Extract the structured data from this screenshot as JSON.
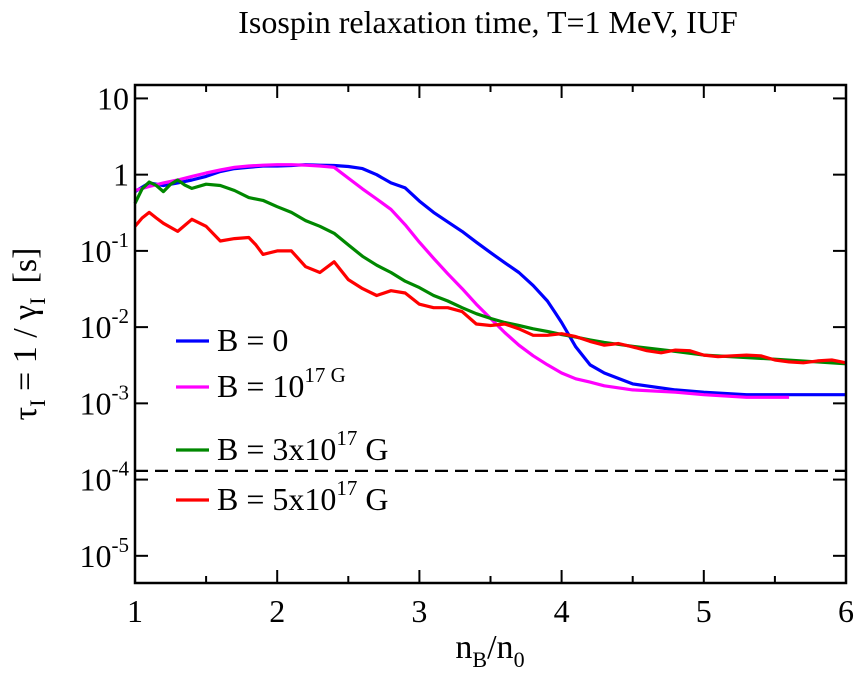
{
  "chart_data": {
    "type": "line",
    "title": "Isospin relaxation time, T=1 MeV, IUF",
    "xlabel": {
      "main": "n",
      "sub1": "B",
      "slash": "/n",
      "sub2": "0"
    },
    "ylabel": {
      "tau": "τ",
      "tau_sub": "I",
      "middle": " = 1 / ",
      "gamma": "γ",
      "gamma_sub": "I",
      "unit": "[s]"
    },
    "x_ticks": [
      {
        "value": 1,
        "label": "1"
      },
      {
        "value": 2,
        "label": "2"
      },
      {
        "value": 3,
        "label": "3"
      },
      {
        "value": 4,
        "label": "4"
      },
      {
        "value": 5,
        "label": "5"
      },
      {
        "value": 6,
        "label": "6"
      }
    ],
    "y_ticks": [
      {
        "value": 10,
        "base": "10",
        "exp": ""
      },
      {
        "value": 1,
        "base": "1",
        "exp": ""
      },
      {
        "value": 0.1,
        "base": "10",
        "exp": "-1"
      },
      {
        "value": 0.01,
        "base": "10",
        "exp": "-2"
      },
      {
        "value": 0.001,
        "base": "10",
        "exp": "-3"
      },
      {
        "value": 0.0001,
        "base": "10",
        "exp": "-4"
      },
      {
        "value": 1e-05,
        "base": "10",
        "exp": "-5"
      }
    ],
    "xlim": [
      1,
      6
    ],
    "ylim": [
      4.4e-06,
      15
    ],
    "yscale": "log",
    "reference_line": {
      "value": 0.00013,
      "style": "dashed",
      "color": "#000000"
    },
    "legend_position": "lower-left",
    "series": [
      {
        "name": "B = 0",
        "legend": {
          "prefix": "B = ",
          "base": "0",
          "exp": "",
          "suffix": ""
        },
        "color": "#0000ff",
        "points": [
          [
            1.0,
            0.6
          ],
          [
            1.1,
            0.78
          ],
          [
            1.2,
            0.72
          ],
          [
            1.3,
            0.78
          ],
          [
            1.4,
            0.85
          ],
          [
            1.5,
            0.95
          ],
          [
            1.6,
            1.1
          ],
          [
            1.7,
            1.2
          ],
          [
            1.8,
            1.25
          ],
          [
            1.9,
            1.3
          ],
          [
            2.0,
            1.3
          ],
          [
            2.1,
            1.32
          ],
          [
            2.2,
            1.35
          ],
          [
            2.3,
            1.33
          ],
          [
            2.4,
            1.32
          ],
          [
            2.5,
            1.28
          ],
          [
            2.6,
            1.2
          ],
          [
            2.7,
            1.0
          ],
          [
            2.8,
            0.78
          ],
          [
            2.9,
            0.67
          ],
          [
            3.0,
            0.45
          ],
          [
            3.1,
            0.32
          ],
          [
            3.2,
            0.24
          ],
          [
            3.3,
            0.18
          ],
          [
            3.4,
            0.13
          ],
          [
            3.5,
            0.095
          ],
          [
            3.6,
            0.07
          ],
          [
            3.7,
            0.052
          ],
          [
            3.8,
            0.035
          ],
          [
            3.9,
            0.022
          ],
          [
            3.95,
            0.016
          ],
          [
            4.0,
            0.0115
          ],
          [
            4.1,
            0.0055
          ],
          [
            4.2,
            0.0032
          ],
          [
            4.3,
            0.0025
          ],
          [
            4.5,
            0.0018
          ],
          [
            4.8,
            0.0015
          ],
          [
            5.0,
            0.0014
          ],
          [
            5.3,
            0.0013
          ],
          [
            5.6,
            0.0013
          ],
          [
            6.0,
            0.0013
          ]
        ]
      },
      {
        "name": "B = 10^17 G",
        "legend": {
          "prefix": "B = ",
          "base": "10",
          "exp": "17 G",
          "suffix": ""
        },
        "color": "#ff00ff",
        "points": [
          [
            1.0,
            0.62
          ],
          [
            1.1,
            0.7
          ],
          [
            1.2,
            0.78
          ],
          [
            1.3,
            0.85
          ],
          [
            1.4,
            0.95
          ],
          [
            1.5,
            1.05
          ],
          [
            1.6,
            1.15
          ],
          [
            1.7,
            1.25
          ],
          [
            1.8,
            1.3
          ],
          [
            1.9,
            1.33
          ],
          [
            2.0,
            1.35
          ],
          [
            2.1,
            1.35
          ],
          [
            2.2,
            1.33
          ],
          [
            2.3,
            1.3
          ],
          [
            2.4,
            1.25
          ],
          [
            2.5,
            0.9
          ],
          [
            2.6,
            0.65
          ],
          [
            2.7,
            0.48
          ],
          [
            2.8,
            0.35
          ],
          [
            2.9,
            0.22
          ],
          [
            3.0,
            0.13
          ],
          [
            3.1,
            0.08
          ],
          [
            3.2,
            0.05
          ],
          [
            3.3,
            0.032
          ],
          [
            3.4,
            0.02
          ],
          [
            3.5,
            0.013
          ],
          [
            3.6,
            0.0085
          ],
          [
            3.7,
            0.0058
          ],
          [
            3.8,
            0.0042
          ],
          [
            3.9,
            0.0032
          ],
          [
            4.0,
            0.0025
          ],
          [
            4.1,
            0.0021
          ],
          [
            4.2,
            0.0019
          ],
          [
            4.3,
            0.0017
          ],
          [
            4.5,
            0.0015
          ],
          [
            4.8,
            0.0014
          ],
          [
            5.0,
            0.0013
          ],
          [
            5.3,
            0.0012
          ],
          [
            5.6,
            0.0012
          ]
        ]
      },
      {
        "name": "B = 3x10^17 G",
        "legend": {
          "prefix": "B = 3x",
          "base": "10",
          "exp": "17",
          "suffix": " G"
        },
        "color": "#008800",
        "points": [
          [
            1.0,
            0.42
          ],
          [
            1.05,
            0.65
          ],
          [
            1.1,
            0.8
          ],
          [
            1.15,
            0.72
          ],
          [
            1.2,
            0.6
          ],
          [
            1.25,
            0.75
          ],
          [
            1.3,
            0.85
          ],
          [
            1.35,
            0.73
          ],
          [
            1.4,
            0.66
          ],
          [
            1.5,
            0.75
          ],
          [
            1.6,
            0.72
          ],
          [
            1.7,
            0.62
          ],
          [
            1.8,
            0.5
          ],
          [
            1.9,
            0.46
          ],
          [
            2.0,
            0.38
          ],
          [
            2.1,
            0.32
          ],
          [
            2.2,
            0.25
          ],
          [
            2.3,
            0.21
          ],
          [
            2.4,
            0.17
          ],
          [
            2.5,
            0.12
          ],
          [
            2.6,
            0.085
          ],
          [
            2.7,
            0.065
          ],
          [
            2.8,
            0.052
          ],
          [
            2.9,
            0.04
          ],
          [
            3.0,
            0.033
          ],
          [
            3.1,
            0.026
          ],
          [
            3.2,
            0.022
          ],
          [
            3.3,
            0.018
          ],
          [
            3.4,
            0.015
          ],
          [
            3.5,
            0.013
          ],
          [
            3.6,
            0.0115
          ],
          [
            3.7,
            0.0105
          ],
          [
            3.8,
            0.0095
          ],
          [
            3.9,
            0.0088
          ],
          [
            4.0,
            0.008
          ],
          [
            4.1,
            0.0074
          ],
          [
            4.2,
            0.0068
          ],
          [
            4.3,
            0.0063
          ],
          [
            4.5,
            0.0056
          ],
          [
            4.8,
            0.0048
          ],
          [
            5.0,
            0.0043
          ],
          [
            5.5,
            0.0038
          ],
          [
            6.0,
            0.0033
          ]
        ]
      },
      {
        "name": "B = 5x10^17 G",
        "legend": {
          "prefix": "B = 5x",
          "base": "10",
          "exp": "17",
          "suffix": " G"
        },
        "color": "#ff0000",
        "points": [
          [
            1.0,
            0.21
          ],
          [
            1.05,
            0.27
          ],
          [
            1.1,
            0.32
          ],
          [
            1.15,
            0.27
          ],
          [
            1.2,
            0.23
          ],
          [
            1.3,
            0.18
          ],
          [
            1.4,
            0.26
          ],
          [
            1.5,
            0.21
          ],
          [
            1.6,
            0.135
          ],
          [
            1.7,
            0.145
          ],
          [
            1.8,
            0.15
          ],
          [
            1.85,
            0.12
          ],
          [
            1.9,
            0.09
          ],
          [
            2.0,
            0.1
          ],
          [
            2.1,
            0.1
          ],
          [
            2.2,
            0.062
          ],
          [
            2.3,
            0.052
          ],
          [
            2.4,
            0.072
          ],
          [
            2.5,
            0.042
          ],
          [
            2.6,
            0.032
          ],
          [
            2.7,
            0.026
          ],
          [
            2.8,
            0.03
          ],
          [
            2.9,
            0.028
          ],
          [
            3.0,
            0.02
          ],
          [
            3.1,
            0.018
          ],
          [
            3.2,
            0.018
          ],
          [
            3.3,
            0.016
          ],
          [
            3.4,
            0.011
          ],
          [
            3.5,
            0.0105
          ],
          [
            3.6,
            0.011
          ],
          [
            3.7,
            0.0095
          ],
          [
            3.8,
            0.0078
          ],
          [
            3.9,
            0.0078
          ],
          [
            4.0,
            0.0082
          ],
          [
            4.1,
            0.0075
          ],
          [
            4.2,
            0.0065
          ],
          [
            4.3,
            0.0058
          ],
          [
            4.4,
            0.0061
          ],
          [
            4.5,
            0.0055
          ],
          [
            4.6,
            0.0049
          ],
          [
            4.7,
            0.0046
          ],
          [
            4.8,
            0.005
          ],
          [
            4.9,
            0.0049
          ],
          [
            5.0,
            0.0043
          ],
          [
            5.1,
            0.0041
          ],
          [
            5.2,
            0.0042
          ],
          [
            5.3,
            0.0043
          ],
          [
            5.4,
            0.0042
          ],
          [
            5.5,
            0.0037
          ],
          [
            5.6,
            0.0035
          ],
          [
            5.7,
            0.0034
          ],
          [
            5.8,
            0.0036
          ],
          [
            5.9,
            0.0037
          ],
          [
            6.0,
            0.0034
          ]
        ]
      }
    ]
  }
}
